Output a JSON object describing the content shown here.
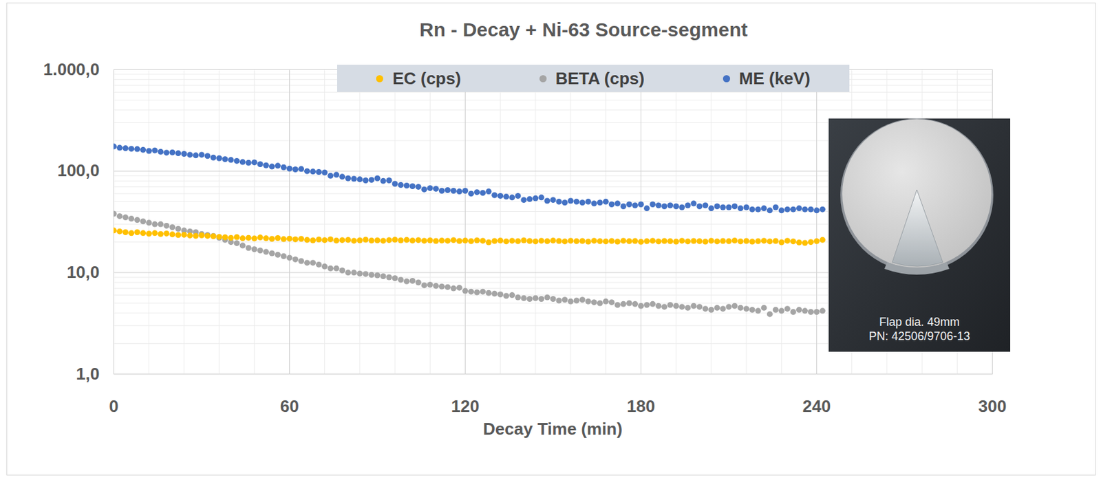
{
  "chart_data": {
    "type": "scatter",
    "title": "Rn - Decay + Ni-63 Source-segment",
    "x_label": "Decay Time (min)",
    "x": [
      0,
      2,
      4,
      6,
      8,
      10,
      12,
      14,
      16,
      18,
      20,
      22,
      24,
      26,
      28,
      30,
      32,
      34,
      36,
      38,
      40,
      42,
      44,
      46,
      48,
      50,
      52,
      54,
      56,
      58,
      60,
      62,
      64,
      66,
      68,
      70,
      72,
      74,
      76,
      78,
      80,
      82,
      84,
      86,
      88,
      90,
      92,
      94,
      96,
      98,
      100,
      102,
      104,
      106,
      108,
      110,
      112,
      114,
      116,
      118,
      120,
      122,
      124,
      126,
      128,
      130,
      132,
      134,
      136,
      138,
      140,
      142,
      144,
      146,
      148,
      150,
      152,
      154,
      156,
      158,
      160,
      162,
      164,
      166,
      168,
      170,
      172,
      174,
      176,
      178,
      180,
      182,
      184,
      186,
      188,
      190,
      192,
      194,
      196,
      198,
      200,
      202,
      204,
      206,
      208,
      210,
      212,
      214,
      216,
      218,
      220,
      222,
      224,
      226,
      228,
      230,
      232,
      234,
      236,
      238,
      240,
      242
    ],
    "series": [
      {
        "name": "EC (cps)",
        "color": "#ffc000",
        "marker": "circle",
        "values": [
          26,
          25.5,
          25,
          24.5,
          25,
          24.5,
          24.2,
          24.5,
          24,
          24.3,
          23.8,
          23.5,
          23.6,
          23.2,
          23,
          23.3,
          23,
          22.8,
          22.5,
          22.3,
          22,
          22.4,
          21.8,
          22,
          21.7,
          22.2,
          21.8,
          21.5,
          21.9,
          21.4,
          21.6,
          21.3,
          21.5,
          21,
          20.8,
          21.2,
          20.9,
          21.3,
          20.7,
          20.9,
          21,
          20.6,
          20.8,
          21.1,
          20.7,
          20.8,
          20.6,
          20.9,
          21.1,
          20.8,
          21,
          20.7,
          20.9,
          20.6,
          20.8,
          20.5,
          20.7,
          20.6,
          20.9,
          20.5,
          20.7,
          20.4,
          20.8,
          20.6,
          19.9,
          20.5,
          20.7,
          20.3,
          20.6,
          20.4,
          20.8,
          20.5,
          20.3,
          20.6,
          20.4,
          20.7,
          20.5,
          20.3,
          20.6,
          20.4,
          20.5,
          20.2,
          20.6,
          20.4,
          20.3,
          20.5,
          20.2,
          20.6,
          20.4,
          20.5,
          20.1,
          20.4,
          20.6,
          20.3,
          20.5,
          20.4,
          20.2,
          20.6,
          20.3,
          20.5,
          20.4,
          20.2,
          20.6,
          20.3,
          20.5,
          20.4,
          20.7,
          20.3,
          20.5,
          20.2,
          20.4,
          20.6,
          20.3,
          20.5,
          19.9,
          20.6,
          20.3,
          19.8,
          19.6,
          20,
          20.4,
          21
        ]
      },
      {
        "name": "BETA (cps)",
        "color": "#a5a5a5",
        "marker": "circle",
        "values": [
          38,
          36,
          35,
          34,
          33,
          32,
          31,
          30,
          30,
          29,
          28,
          27,
          26,
          25.5,
          25,
          24,
          23.5,
          23,
          22,
          21,
          20,
          19.5,
          18.5,
          17.5,
          17,
          16.5,
          16,
          15.5,
          15,
          14.5,
          14,
          13.5,
          13,
          12.5,
          12.5,
          12,
          11.5,
          11,
          11,
          10.5,
          10,
          10,
          9.8,
          9.7,
          9.5,
          9.4,
          9.2,
          9,
          8.8,
          8.5,
          8.2,
          8.3,
          8,
          7.5,
          7.6,
          7.4,
          7.3,
          7.2,
          7,
          7.1,
          6.6,
          6.5,
          6.4,
          6.5,
          6.3,
          6.2,
          6.1,
          5.9,
          6,
          5.7,
          5.6,
          5.5,
          5.6,
          5.5,
          5.7,
          5.5,
          5.3,
          5.4,
          5.2,
          5.3,
          5.4,
          5.2,
          5.1,
          5,
          5.2,
          5.1,
          4.8,
          4.9,
          5,
          4.9,
          4.7,
          4.8,
          4.9,
          4.7,
          4.6,
          4.8,
          4.7,
          4.6,
          4.5,
          4.7,
          4.6,
          4.4,
          4.3,
          4.5,
          4.4,
          4.6,
          4.7,
          4.5,
          4.4,
          4.3,
          4.2,
          4.5,
          3.9,
          4.3,
          4.2,
          4.4,
          4.1,
          4.3,
          4.2,
          4.1,
          4.1,
          4.2
        ]
      },
      {
        "name": "ME (keV)",
        "color": "#4472c4",
        "marker": "circle",
        "values": [
          175,
          170,
          168,
          166,
          165,
          162,
          158,
          160,
          155,
          152,
          153,
          150,
          148,
          145,
          143,
          145,
          141,
          136,
          134,
          131,
          129,
          126,
          123,
          121,
          122,
          117,
          114,
          111,
          113,
          109,
          106,
          104,
          105,
          100,
          99,
          98,
          97,
          90,
          92,
          88,
          85,
          84,
          83,
          81,
          82,
          85,
          80,
          81,
          75,
          73,
          72,
          71,
          70,
          66,
          68,
          67,
          64,
          65,
          64,
          63,
          64,
          60,
          62,
          61,
          63,
          58,
          57,
          56,
          55,
          57,
          52,
          53,
          54,
          55,
          51,
          52,
          50,
          49,
          51,
          50,
          49,
          50,
          48,
          49,
          50,
          47,
          48,
          45,
          47,
          46,
          47,
          43,
          47,
          46,
          45,
          46,
          45,
          44,
          46,
          48,
          45,
          46,
          43,
          45,
          44,
          44,
          45,
          43,
          44,
          42,
          42,
          43,
          41,
          44,
          41,
          42,
          42,
          43,
          42,
          42,
          41,
          42
        ]
      }
    ],
    "xlim": [
      0,
      300
    ],
    "xticks": [
      0,
      60,
      120,
      180,
      240,
      300
    ],
    "ylim": [
      1,
      1000
    ],
    "yticks": [
      {
        "value": 1,
        "label": "1,0"
      },
      {
        "value": 10,
        "label": "10,0"
      },
      {
        "value": 100,
        "label": "100,0"
      },
      {
        "value": 1000,
        "label": "1.000,0"
      }
    ],
    "log": "y",
    "grid": true,
    "legend": "top",
    "annotations": [
      "Flap dia. 49mm",
      "PN: 42506/9706-13"
    ]
  }
}
